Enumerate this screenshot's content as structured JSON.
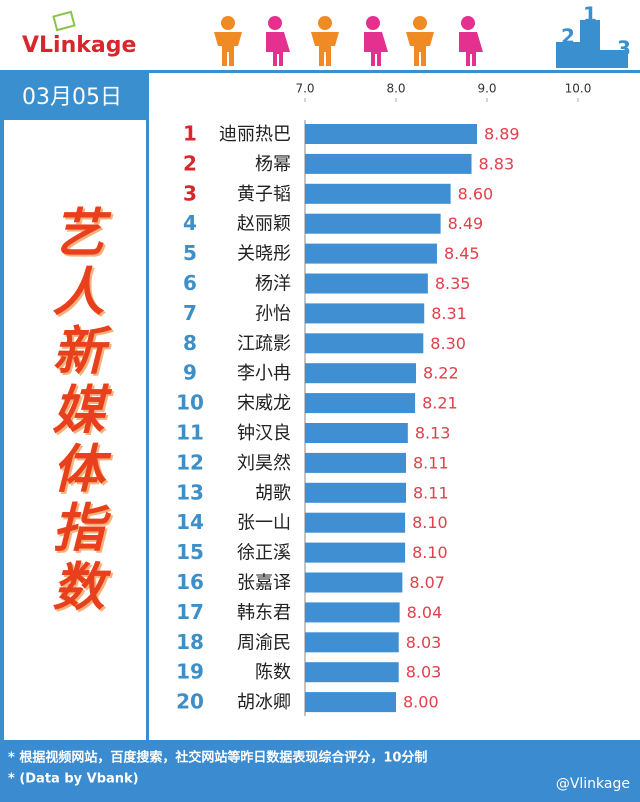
{
  "logo": "VLinkage",
  "podium": [
    "2",
    "1",
    "3"
  ],
  "date": "03月05日",
  "side_title": "艺人新媒体指数",
  "notes": [
    "* 根据视频网站，百度搜索，社交网站等昨日数据表现综合评分，10分制",
    "* (Data by Vbank)"
  ],
  "weibo": "@Vlinkage",
  "chart_data": {
    "type": "bar",
    "orientation": "horizontal",
    "ranks": [
      1,
      2,
      3,
      4,
      5,
      6,
      7,
      8,
      9,
      10,
      11,
      12,
      13,
      14,
      15,
      16,
      17,
      18,
      19,
      20
    ],
    "categories": [
      "迪丽热巴",
      "杨幂",
      "黄子韬",
      "赵丽颖",
      "关晓彤",
      "杨洋",
      "孙怡",
      "江疏影",
      "李小冉",
      "宋威龙",
      "钟汉良",
      "刘昊然",
      "胡歌",
      "张一山",
      "徐正溪",
      "张嘉译",
      "韩东君",
      "周渝民",
      "陈数",
      "胡冰卿"
    ],
    "values": [
      8.89,
      8.83,
      8.6,
      8.49,
      8.45,
      8.35,
      8.31,
      8.3,
      8.22,
      8.21,
      8.13,
      8.11,
      8.11,
      8.1,
      8.1,
      8.07,
      8.04,
      8.03,
      8.03,
      8.0
    ],
    "value_labels": [
      "8.89",
      "8.83",
      "8.60",
      "8.49",
      "8.45",
      "8.35",
      "8.31",
      "8.30",
      "8.22",
      "8.21",
      "8.13",
      "8.11",
      "8.11",
      "8.10",
      "8.10",
      "8.07",
      "8.04",
      "8.03",
      "8.03",
      "8.00"
    ],
    "xlim": [
      7,
      10
    ],
    "xticks": [
      {
        "value": 7,
        "label": "7.0"
      },
      {
        "value": 8,
        "label": "8.0"
      },
      {
        "value": 9,
        "label": "9.0"
      },
      {
        "value": 10,
        "label": "10.0"
      }
    ],
    "color": "#3f8fd2",
    "value_label_color": "#e0404a",
    "highlight_count": 3,
    "rank_color_top": "#d9262c",
    "rank_color": "#3d8fc7"
  }
}
